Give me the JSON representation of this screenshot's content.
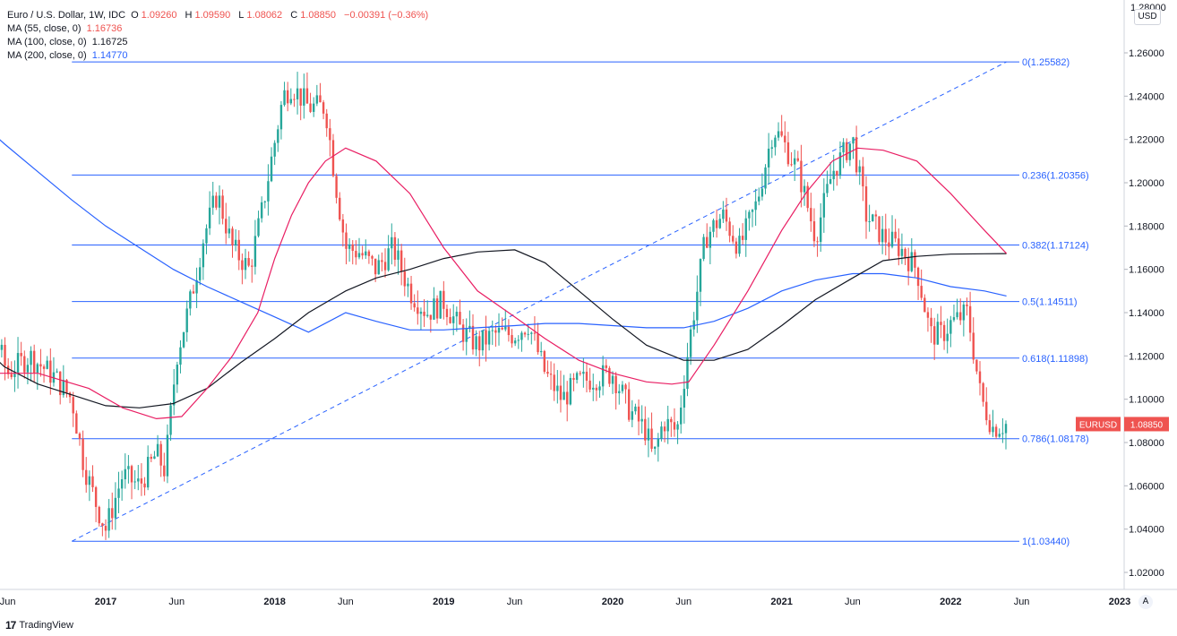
{
  "legend": {
    "symbol": "Euro / U.S. Dollar, 1W, IDC",
    "o_label": "O",
    "o_value": "1.09260",
    "h_label": "H",
    "h_value": "1.09590",
    "l_label": "L",
    "l_value": "1.08062",
    "c_label": "C",
    "c_value": "1.08850",
    "change": "−0.00391 (−0.36%)",
    "ma55_label": "MA (55, close, 0)",
    "ma55_value": "1.16736",
    "ma100_label": "MA (100, close, 0)",
    "ma100_value": "1.16725",
    "ma200_label": "MA (200, close, 0)",
    "ma200_value": "1.14770"
  },
  "currency_button": "USD",
  "auto_button": "A",
  "brand": {
    "logo": "17",
    "name": "TradingView"
  },
  "colors": {
    "up": "#26a69a",
    "down": "#ef5350",
    "fib": "#2962ff",
    "ma55": "#e91e63",
    "ma100": "#131722",
    "ma200": "#2962ff"
  },
  "chart_data": {
    "type": "candlestick",
    "ylim": [
      1.01,
      1.27
    ],
    "y_ticks": [
      "1.02000",
      "1.04000",
      "1.06000",
      "1.08000",
      "1.10000",
      "1.12000",
      "1.14000",
      "1.16000",
      "1.18000",
      "1.20000",
      "1.22000",
      "1.24000",
      "1.26000"
    ],
    "top_tick_partial": "1.28000",
    "x_ticks": [
      "Jun",
      "2017",
      "Jun",
      "2018",
      "Jun",
      "2019",
      "Jun",
      "2020",
      "Jun",
      "2021",
      "Jun",
      "2022",
      "Jun",
      "2023"
    ],
    "x_tick_dates": [
      2016.42,
      2017.0,
      2017.42,
      2018.0,
      2018.42,
      2019.0,
      2019.42,
      2020.0,
      2020.42,
      2021.0,
      2021.42,
      2022.0,
      2022.42,
      2023.0
    ],
    "last_price_label": {
      "symbol": "EURUSD",
      "value": "1.08850"
    },
    "fib_levels": [
      {
        "ratio": "0",
        "value": 1.25582,
        "label": "0(1.25582)"
      },
      {
        "ratio": "0.236",
        "value": 1.20356,
        "label": "0.236(1.20356)"
      },
      {
        "ratio": "0.382",
        "value": 1.17124,
        "label": "0.382(1.17124)"
      },
      {
        "ratio": "0.5",
        "value": 1.14511,
        "label": "0.5(1.14511)"
      },
      {
        "ratio": "0.618",
        "value": 1.11898,
        "label": "0.618(1.11898)"
      },
      {
        "ratio": "0.786",
        "value": 1.08178,
        "label": "0.786(1.08178)"
      },
      {
        "ratio": "1",
        "value": 1.0344,
        "label": "1(1.03440)"
      }
    ],
    "fib_range": [
      2016.8,
      2022.33
    ],
    "trendline": {
      "from": [
        2016.8,
        1.0344
      ],
      "to": [
        2022.33,
        1.25582
      ]
    },
    "price_path": [
      [
        2016.0,
        1.115
      ],
      [
        2016.2,
        1.132
      ],
      [
        2016.3,
        1.138
      ],
      [
        2016.42,
        1.112
      ],
      [
        2016.55,
        1.12
      ],
      [
        2016.7,
        1.11
      ],
      [
        2016.8,
        1.1
      ],
      [
        2016.87,
        1.07
      ],
      [
        2016.95,
        1.05
      ],
      [
        2017.0,
        1.04
      ],
      [
        2017.1,
        1.065
      ],
      [
        2017.2,
        1.06
      ],
      [
        2017.3,
        1.075
      ],
      [
        2017.35,
        1.067
      ],
      [
        2017.42,
        1.12
      ],
      [
        2017.5,
        1.145
      ],
      [
        2017.58,
        1.175
      ],
      [
        2017.66,
        1.195
      ],
      [
        2017.75,
        1.17
      ],
      [
        2017.85,
        1.16
      ],
      [
        2017.92,
        1.185
      ],
      [
        2018.05,
        1.24
      ],
      [
        2018.1,
        1.245
      ],
      [
        2018.2,
        1.235
      ],
      [
        2018.3,
        1.235
      ],
      [
        2018.36,
        1.2
      ],
      [
        2018.42,
        1.17
      ],
      [
        2018.5,
        1.168
      ],
      [
        2018.6,
        1.16
      ],
      [
        2018.7,
        1.17
      ],
      [
        2018.8,
        1.15
      ],
      [
        2018.9,
        1.14
      ],
      [
        2019.0,
        1.145
      ],
      [
        2019.1,
        1.132
      ],
      [
        2019.2,
        1.125
      ],
      [
        2019.3,
        1.13
      ],
      [
        2019.42,
        1.13
      ],
      [
        2019.5,
        1.135
      ],
      [
        2019.6,
        1.112
      ],
      [
        2019.7,
        1.1
      ],
      [
        2019.8,
        1.108
      ],
      [
        2019.9,
        1.11
      ],
      [
        2020.0,
        1.112
      ],
      [
        2020.1,
        1.095
      ],
      [
        2020.2,
        1.085
      ],
      [
        2020.24,
        1.072
      ],
      [
        2020.3,
        1.09
      ],
      [
        2020.38,
        1.085
      ],
      [
        2020.45,
        1.125
      ],
      [
        2020.55,
        1.175
      ],
      [
        2020.65,
        1.185
      ],
      [
        2020.75,
        1.17
      ],
      [
        2020.85,
        1.19
      ],
      [
        2020.95,
        1.225
      ],
      [
        2021.0,
        1.22
      ],
      [
        2021.1,
        1.205
      ],
      [
        2021.2,
        1.175
      ],
      [
        2021.3,
        1.205
      ],
      [
        2021.38,
        1.215
      ],
      [
        2021.42,
        1.22
      ],
      [
        2021.5,
        1.185
      ],
      [
        2021.6,
        1.175
      ],
      [
        2021.7,
        1.17
      ],
      [
        2021.8,
        1.16
      ],
      [
        2021.88,
        1.13
      ],
      [
        2021.95,
        1.13
      ],
      [
        2022.0,
        1.135
      ],
      [
        2022.1,
        1.14
      ],
      [
        2022.18,
        1.1
      ],
      [
        2022.25,
        1.087
      ],
      [
        2022.33,
        1.0885
      ]
    ],
    "ma55": [
      [
        2016.0,
        1.11
      ],
      [
        2016.3,
        1.112
      ],
      [
        2016.6,
        1.112
      ],
      [
        2016.9,
        1.105
      ],
      [
        2017.1,
        1.096
      ],
      [
        2017.3,
        1.091
      ],
      [
        2017.45,
        1.092
      ],
      [
        2017.6,
        1.105
      ],
      [
        2017.75,
        1.12
      ],
      [
        2017.9,
        1.14
      ],
      [
        2018.0,
        1.165
      ],
      [
        2018.1,
        1.185
      ],
      [
        2018.2,
        1.2
      ],
      [
        2018.3,
        1.21
      ],
      [
        2018.42,
        1.216
      ],
      [
        2018.6,
        1.21
      ],
      [
        2018.8,
        1.195
      ],
      [
        2019.0,
        1.17
      ],
      [
        2019.2,
        1.15
      ],
      [
        2019.42,
        1.138
      ],
      [
        2019.6,
        1.128
      ],
      [
        2019.8,
        1.118
      ],
      [
        2020.0,
        1.112
      ],
      [
        2020.2,
        1.108
      ],
      [
        2020.35,
        1.107
      ],
      [
        2020.45,
        1.108
      ],
      [
        2020.6,
        1.125
      ],
      [
        2020.8,
        1.15
      ],
      [
        2021.0,
        1.178
      ],
      [
        2021.15,
        1.196
      ],
      [
        2021.3,
        1.21
      ],
      [
        2021.45,
        1.216
      ],
      [
        2021.6,
        1.215
      ],
      [
        2021.8,
        1.21
      ],
      [
        2022.0,
        1.195
      ],
      [
        2022.2,
        1.178
      ],
      [
        2022.33,
        1.16736
      ]
    ],
    "ma100": [
      [
        2016.0,
        1.155
      ],
      [
        2016.2,
        1.13
      ],
      [
        2016.4,
        1.115
      ],
      [
        2016.6,
        1.107
      ],
      [
        2016.8,
        1.102
      ],
      [
        2017.0,
        1.097
      ],
      [
        2017.2,
        1.096
      ],
      [
        2017.4,
        1.098
      ],
      [
        2017.6,
        1.105
      ],
      [
        2017.8,
        1.117
      ],
      [
        2018.0,
        1.128
      ],
      [
        2018.2,
        1.14
      ],
      [
        2018.42,
        1.15
      ],
      [
        2018.6,
        1.156
      ],
      [
        2018.8,
        1.16
      ],
      [
        2019.0,
        1.165
      ],
      [
        2019.2,
        1.168
      ],
      [
        2019.42,
        1.169
      ],
      [
        2019.6,
        1.163
      ],
      [
        2019.8,
        1.15
      ],
      [
        2020.0,
        1.137
      ],
      [
        2020.2,
        1.125
      ],
      [
        2020.42,
        1.118
      ],
      [
        2020.6,
        1.118
      ],
      [
        2020.8,
        1.123
      ],
      [
        2021.0,
        1.134
      ],
      [
        2021.2,
        1.146
      ],
      [
        2021.42,
        1.156
      ],
      [
        2021.6,
        1.164
      ],
      [
        2021.8,
        1.166
      ],
      [
        2022.0,
        1.167
      ],
      [
        2022.2,
        1.1672
      ],
      [
        2022.33,
        1.16725
      ]
    ],
    "ma200": [
      [
        2016.0,
        1.243
      ],
      [
        2016.2,
        1.232
      ],
      [
        2016.4,
        1.218
      ],
      [
        2016.6,
        1.205
      ],
      [
        2016.8,
        1.192
      ],
      [
        2017.0,
        1.18
      ],
      [
        2017.2,
        1.17
      ],
      [
        2017.4,
        1.16
      ],
      [
        2017.6,
        1.152
      ],
      [
        2017.8,
        1.145
      ],
      [
        2018.0,
        1.138
      ],
      [
        2018.2,
        1.131
      ],
      [
        2018.42,
        1.14
      ],
      [
        2018.6,
        1.136
      ],
      [
        2018.8,
        1.132
      ],
      [
        2019.0,
        1.132
      ],
      [
        2019.2,
        1.133
      ],
      [
        2019.42,
        1.134
      ],
      [
        2019.6,
        1.135
      ],
      [
        2019.8,
        1.135
      ],
      [
        2020.0,
        1.134
      ],
      [
        2020.2,
        1.133
      ],
      [
        2020.42,
        1.133
      ],
      [
        2020.6,
        1.136
      ],
      [
        2020.8,
        1.142
      ],
      [
        2021.0,
        1.15
      ],
      [
        2021.2,
        1.155
      ],
      [
        2021.42,
        1.158
      ],
      [
        2021.6,
        1.158
      ],
      [
        2021.8,
        1.156
      ],
      [
        2022.0,
        1.152
      ],
      [
        2022.2,
        1.15
      ],
      [
        2022.33,
        1.1477
      ]
    ]
  }
}
